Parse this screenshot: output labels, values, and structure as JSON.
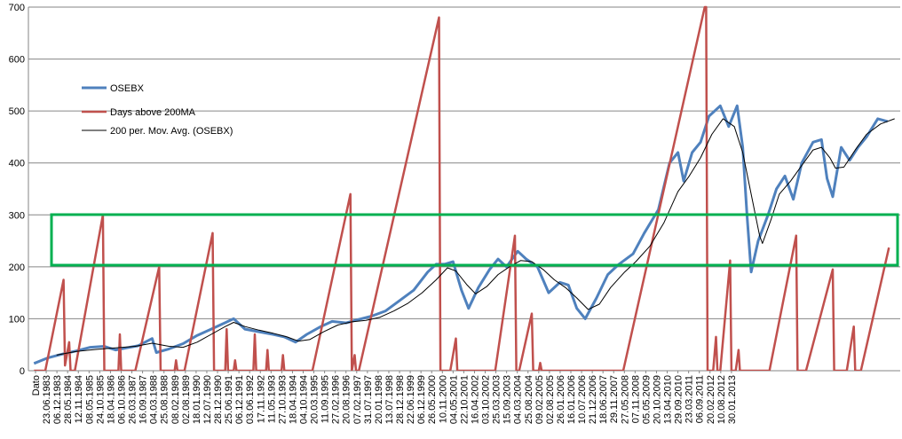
{
  "chart_data": {
    "type": "line",
    "ylim": [
      0,
      700
    ],
    "y_ticks": [
      "0",
      "100",
      "200",
      "300",
      "400",
      "500",
      "600",
      "700"
    ],
    "grid": "horizontal",
    "x_category_label": "Dato",
    "x_ticks": [
      "23.06.1983",
      "06.12.1983",
      "28.05.1984",
      "12.11.1984",
      "08.05.1985",
      "24.10.1985",
      "18.04.1986",
      "06.10.1986",
      "26.03.1987",
      "16.09.1987",
      "04.03.1988",
      "25.08.1988",
      "08.02.1989",
      "02.08.1989",
      "18.01.1990",
      "12.07.1990",
      "28.12.1990",
      "25.06.1991",
      "06.12.1991",
      "03.06.1992",
      "17.11.1992",
      "11.05.1993",
      "27.10.1993",
      "18.04.1994",
      "04.10.1994",
      "20.03.1995",
      "11.09.1995",
      "27.02.1996",
      "20.08.1996",
      "07.02.1997",
      "31.07.1997",
      "20.01.1998",
      "13.07.1998",
      "28.12.1998",
      "22.06.1999",
      "06.12.1999",
      "26.05.2000",
      "10.11.2000",
      "04.05.2001",
      "22.10.2001",
      "16.04.2002",
      "03.10.2002",
      "25.03.2003",
      "15.09.2003",
      "04.03.2004",
      "25.08.2004",
      "09.02.2005",
      "02.08.2005",
      "26.01.2006",
      "16.01.2006",
      "10.07.2006",
      "21.12.2006",
      "18.06.2007",
      "29.11.2007",
      "27.05.2008",
      "07.11.2008",
      "05.05.2009",
      "20.10.2009",
      "13.04.2010",
      "29.09.2010",
      "23.03.2011",
      "06.09.2011",
      "20.02.2012",
      "10.08.2012",
      "30.01.2013"
    ],
    "legend_position": "top-left",
    "series": [
      {
        "name": "OSEBX",
        "color": "#4F81BD",
        "points": [
          [
            1983.5,
            14
          ],
          [
            1984.0,
            25
          ],
          [
            1984.5,
            32
          ],
          [
            1985.0,
            38
          ],
          [
            1985.5,
            45
          ],
          [
            1986.0,
            47
          ],
          [
            1986.4,
            40
          ],
          [
            1986.8,
            44
          ],
          [
            1987.2,
            48
          ],
          [
            1987.7,
            62
          ],
          [
            1987.85,
            35
          ],
          [
            1988.3,
            42
          ],
          [
            1988.8,
            52
          ],
          [
            1989.3,
            68
          ],
          [
            1989.8,
            80
          ],
          [
            1990.2,
            90
          ],
          [
            1990.6,
            100
          ],
          [
            1991.0,
            80
          ],
          [
            1991.5,
            75
          ],
          [
            1992.0,
            70
          ],
          [
            1992.4,
            65
          ],
          [
            1992.8,
            55
          ],
          [
            1993.2,
            70
          ],
          [
            1993.7,
            85
          ],
          [
            1994.1,
            95
          ],
          [
            1994.6,
            92
          ],
          [
            1995.0,
            98
          ],
          [
            1995.5,
            105
          ],
          [
            1996.0,
            115
          ],
          [
            1996.5,
            135
          ],
          [
            1997.0,
            155
          ],
          [
            1997.5,
            190
          ],
          [
            1997.8,
            205
          ],
          [
            1998.1,
            205
          ],
          [
            1998.4,
            210
          ],
          [
            1998.7,
            155
          ],
          [
            1998.95,
            120
          ],
          [
            1999.3,
            160
          ],
          [
            1999.7,
            195
          ],
          [
            2000.0,
            215
          ],
          [
            2000.3,
            200
          ],
          [
            2000.7,
            230
          ],
          [
            2001.0,
            215
          ],
          [
            2001.4,
            200
          ],
          [
            2001.8,
            150
          ],
          [
            2002.2,
            170
          ],
          [
            2002.5,
            165
          ],
          [
            2002.8,
            120
          ],
          [
            2003.1,
            100
          ],
          [
            2003.5,
            140
          ],
          [
            2003.9,
            185
          ],
          [
            2004.3,
            205
          ],
          [
            2004.8,
            225
          ],
          [
            2005.2,
            265
          ],
          [
            2005.7,
            310
          ],
          [
            2006.1,
            400
          ],
          [
            2006.4,
            420
          ],
          [
            2006.6,
            365
          ],
          [
            2006.9,
            420
          ],
          [
            2007.2,
            440
          ],
          [
            2007.5,
            490
          ],
          [
            2007.9,
            510
          ],
          [
            2008.2,
            470
          ],
          [
            2008.5,
            510
          ],
          [
            2008.7,
            430
          ],
          [
            2008.85,
            300
          ],
          [
            2009.0,
            190
          ],
          [
            2009.25,
            250
          ],
          [
            2009.6,
            300
          ],
          [
            2009.9,
            350
          ],
          [
            2010.2,
            375
          ],
          [
            2010.5,
            330
          ],
          [
            2010.8,
            400
          ],
          [
            2011.2,
            440
          ],
          [
            2011.5,
            445
          ],
          [
            2011.7,
            370
          ],
          [
            2011.9,
            335
          ],
          [
            2012.2,
            430
          ],
          [
            2012.5,
            405
          ],
          [
            2012.8,
            430
          ],
          [
            2013.1,
            450
          ],
          [
            2013.5,
            485
          ],
          [
            2013.85,
            480
          ]
        ]
      },
      {
        "name": "Days above 200MA",
        "color": "#C0504D",
        "points": [
          [
            1983.5,
            0
          ],
          [
            1983.9,
            0
          ],
          [
            1984.55,
            175
          ],
          [
            1984.6,
            10
          ],
          [
            1984.75,
            55
          ],
          [
            1984.8,
            0
          ],
          [
            1984.95,
            0
          ],
          [
            1985.95,
            300
          ],
          [
            1986.0,
            0
          ],
          [
            1986.5,
            0
          ],
          [
            1986.55,
            70
          ],
          [
            1986.6,
            0
          ],
          [
            1987.1,
            0
          ],
          [
            1987.95,
            200
          ],
          [
            1988.0,
            0
          ],
          [
            1988.5,
            0
          ],
          [
            1988.55,
            20
          ],
          [
            1988.6,
            0
          ],
          [
            1988.85,
            0
          ],
          [
            1989.85,
            265
          ],
          [
            1989.9,
            0
          ],
          [
            1990.3,
            0
          ],
          [
            1990.35,
            80
          ],
          [
            1990.4,
            0
          ],
          [
            1990.6,
            0
          ],
          [
            1990.65,
            20
          ],
          [
            1990.7,
            0
          ],
          [
            1991.3,
            0
          ],
          [
            1991.35,
            70
          ],
          [
            1991.4,
            0
          ],
          [
            1991.75,
            0
          ],
          [
            1991.8,
            40
          ],
          [
            1991.85,
            0
          ],
          [
            1992.3,
            0
          ],
          [
            1992.35,
            30
          ],
          [
            1992.4,
            0
          ],
          [
            1993.4,
            0
          ],
          [
            1994.75,
            340
          ],
          [
            1994.8,
            0
          ],
          [
            1994.9,
            30
          ],
          [
            1994.95,
            0
          ],
          [
            1995.05,
            0
          ],
          [
            1997.9,
            680
          ],
          [
            1997.95,
            0
          ],
          [
            1998.3,
            0
          ],
          [
            1998.5,
            62
          ],
          [
            1998.55,
            0
          ],
          [
            1999.9,
            0
          ],
          [
            2000.6,
            260
          ],
          [
            2000.65,
            0
          ],
          [
            2000.75,
            0
          ],
          [
            2001.2,
            110
          ],
          [
            2001.25,
            0
          ],
          [
            2001.45,
            0
          ],
          [
            2001.5,
            15
          ],
          [
            2001.55,
            0
          ],
          [
            2004.45,
            0
          ],
          [
            2007.35,
            700
          ],
          [
            2007.4,
            700
          ],
          [
            2007.45,
            0
          ],
          [
            2007.65,
            0
          ],
          [
            2007.75,
            65
          ],
          [
            2007.8,
            0
          ],
          [
            2007.9,
            0
          ],
          [
            2008.25,
            212
          ],
          [
            2008.3,
            0
          ],
          [
            2008.45,
            0
          ],
          [
            2008.55,
            40
          ],
          [
            2008.6,
            0
          ],
          [
            2009.65,
            0
          ],
          [
            2010.6,
            260
          ],
          [
            2010.65,
            0
          ],
          [
            2010.95,
            0
          ],
          [
            2011.9,
            195
          ],
          [
            2011.95,
            0
          ],
          [
            2012.4,
            0
          ],
          [
            2012.65,
            85
          ],
          [
            2012.7,
            0
          ],
          [
            2012.9,
            0
          ],
          [
            2013.9,
            237
          ]
        ]
      },
      {
        "name": "200 per. Mov. Avg. (OSEBX)",
        "color": "#000000",
        "points": [
          [
            1984.3,
            30
          ],
          [
            1985.0,
            37
          ],
          [
            1985.7,
            41
          ],
          [
            1986.4,
            44
          ],
          [
            1987.1,
            47
          ],
          [
            1987.7,
            53
          ],
          [
            1988.3,
            47
          ],
          [
            1988.8,
            45
          ],
          [
            1989.3,
            55
          ],
          [
            1989.8,
            70
          ],
          [
            1990.3,
            85
          ],
          [
            1990.6,
            93
          ],
          [
            1991.0,
            85
          ],
          [
            1991.5,
            78
          ],
          [
            1992.0,
            72
          ],
          [
            1992.5,
            65
          ],
          [
            1992.9,
            57
          ],
          [
            1993.3,
            60
          ],
          [
            1993.8,
            75
          ],
          [
            1994.3,
            88
          ],
          [
            1994.8,
            94
          ],
          [
            1995.3,
            97
          ],
          [
            1995.8,
            103
          ],
          [
            1996.3,
            115
          ],
          [
            1996.8,
            130
          ],
          [
            1997.3,
            150
          ],
          [
            1997.8,
            175
          ],
          [
            1998.2,
            198
          ],
          [
            1998.5,
            192
          ],
          [
            1998.9,
            165
          ],
          [
            1999.2,
            148
          ],
          [
            1999.6,
            162
          ],
          [
            2000.0,
            185
          ],
          [
            2000.4,
            200
          ],
          [
            2000.8,
            212
          ],
          [
            2001.2,
            210
          ],
          [
            2001.6,
            195
          ],
          [
            2002.0,
            175
          ],
          [
            2002.4,
            160
          ],
          [
            2002.8,
            140
          ],
          [
            2003.2,
            118
          ],
          [
            2003.6,
            128
          ],
          [
            2004.0,
            160
          ],
          [
            2004.5,
            190
          ],
          [
            2004.9,
            210
          ],
          [
            2005.4,
            240
          ],
          [
            2005.9,
            285
          ],
          [
            2006.4,
            345
          ],
          [
            2006.8,
            375
          ],
          [
            2007.2,
            410
          ],
          [
            2007.6,
            455
          ],
          [
            2008.0,
            485
          ],
          [
            2008.4,
            470
          ],
          [
            2008.7,
            420
          ],
          [
            2009.0,
            340
          ],
          [
            2009.3,
            260
          ],
          [
            2009.4,
            245
          ],
          [
            2009.7,
            290
          ],
          [
            2010.0,
            340
          ],
          [
            2010.4,
            365
          ],
          [
            2010.8,
            395
          ],
          [
            2011.2,
            425
          ],
          [
            2011.5,
            430
          ],
          [
            2011.8,
            410
          ],
          [
            2012.0,
            390
          ],
          [
            2012.3,
            392
          ],
          [
            2012.7,
            425
          ],
          [
            2013.1,
            455
          ],
          [
            2013.6,
            475
          ],
          [
            2014.1,
            485
          ]
        ]
      }
    ]
  }
}
